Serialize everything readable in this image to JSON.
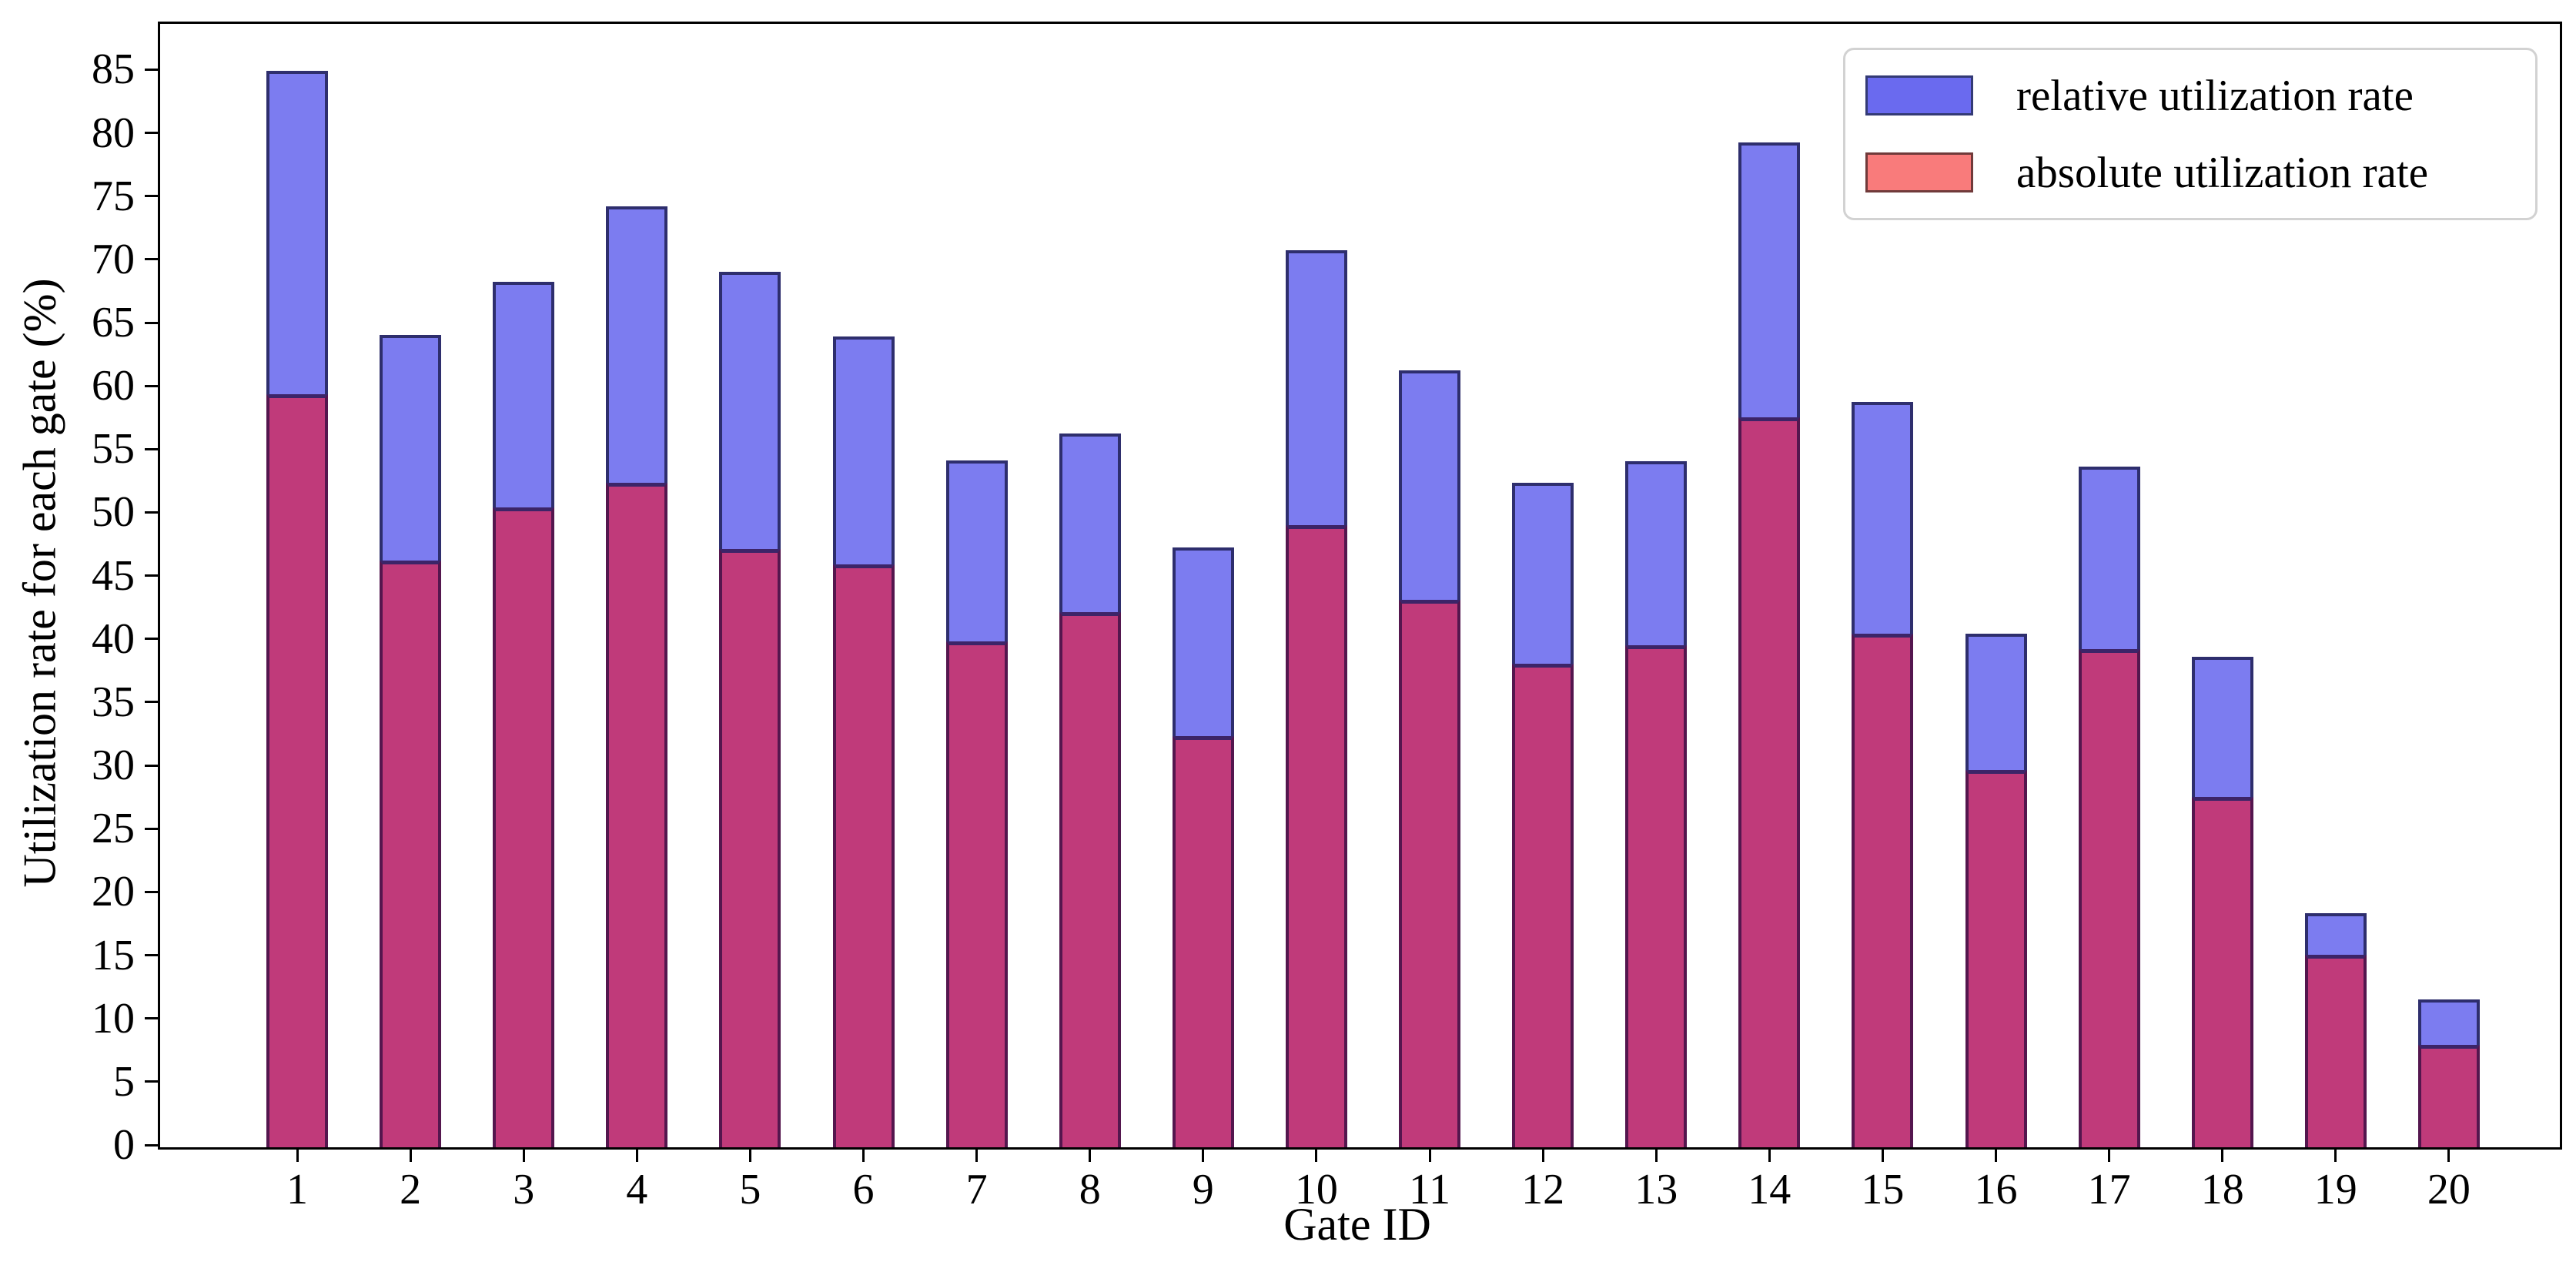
{
  "chart_data": {
    "type": "bar",
    "title": "",
    "xlabel": "Gate ID",
    "ylabel": "Utilization rate for each gate (%)",
    "categories": [
      "1",
      "2",
      "3",
      "4",
      "5",
      "6",
      "7",
      "8",
      "9",
      "10",
      "11",
      "12",
      "13",
      "14",
      "15",
      "16",
      "17",
      "18",
      "19",
      "20"
    ],
    "series": [
      {
        "name": "relative utilization rate",
        "values": [
          85.1,
          64.2,
          68.4,
          74.4,
          69.2,
          64.1,
          54.3,
          56.4,
          47.4,
          70.9,
          61.4,
          52.5,
          54.2,
          79.4,
          58.9,
          40.6,
          53.8,
          38.8,
          18.5,
          11.7
        ],
        "bar_fill": "#7c7cf0",
        "bar_edge": "#2e2e6d",
        "swatch_fill": "#6a6aef",
        "swatch_edge": "#333a75"
      },
      {
        "name": "absolute utilization rate",
        "values": [
          59.5,
          46.4,
          50.6,
          52.5,
          47.3,
          46.1,
          40.0,
          42.3,
          32.5,
          49.2,
          43.3,
          38.2,
          39.7,
          57.7,
          40.6,
          29.8,
          39.4,
          27.7,
          15.2,
          8.1
        ],
        "bar_fill": "#c03a7a",
        "bar_edge": "#54164e",
        "bar_top_edge": "#3c2468",
        "swatch_fill": "#f97b7b",
        "swatch_edge": "#703a3a"
      }
    ],
    "ylim": [
      0,
      88.8
    ],
    "yticks": [
      0,
      5,
      10,
      15,
      20,
      25,
      30,
      35,
      40,
      45,
      50,
      55,
      60,
      65,
      70,
      75,
      80,
      85
    ],
    "legend_position": "upper right",
    "grid": false
  },
  "colors": {
    "background": "#ffffff",
    "spine": "#000000",
    "text": "#000000",
    "legend_border": "#d2d2d2"
  }
}
